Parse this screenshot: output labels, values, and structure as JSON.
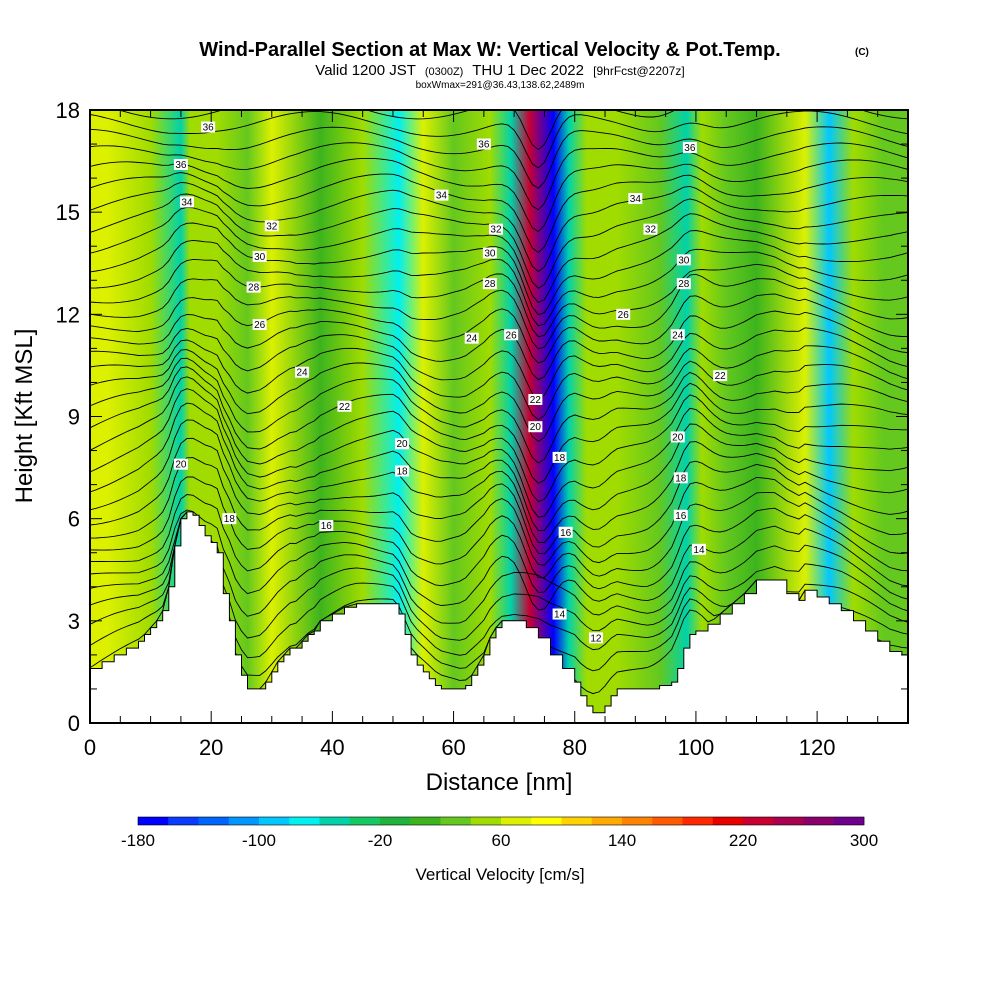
{
  "chart_data": {
    "type": "heatmap",
    "title": "Wind-Parallel Section at Max W: Vertical Velocity & Pot.Temp.",
    "title_mark": "(C)",
    "subtitle_a": "Valid 1200 JST",
    "subtitle_a_small": "(0300Z)",
    "subtitle_b": "THU 1 Dec 2022",
    "subtitle_c": "[9hrFcst@2207z]",
    "info_line": "boxWmax=291@36.43,138.62,2489m",
    "xlabel": "Distance [nm]",
    "ylabel": "Height [Kft MSL]",
    "xlim": [
      0,
      135
    ],
    "ylim": [
      0,
      18
    ],
    "x_ticks": [
      "0",
      "20",
      "40",
      "60",
      "80",
      "100",
      "120"
    ],
    "y_ticks": [
      "0",
      "3",
      "6",
      "9",
      "12",
      "15",
      "18"
    ],
    "colorbar": {
      "title": "Vertical Velocity [cm/s]",
      "min": -180,
      "max": 300,
      "step": 20,
      "tick_labels": [
        "-180",
        "-100",
        "-20",
        "60",
        "140",
        "220",
        "300"
      ],
      "colors": [
        "#0000ff",
        "#0a3cff",
        "#0064ff",
        "#0096ff",
        "#00c8ff",
        "#00f0f0",
        "#00d2aa",
        "#14c864",
        "#1eb43c",
        "#3cb41e",
        "#64c81e",
        "#a0dc00",
        "#dcf000",
        "#ffff00",
        "#ffd200",
        "#ffaa00",
        "#ff8200",
        "#ff5a00",
        "#ff2800",
        "#e60000",
        "#c80032",
        "#aa0050",
        "#8c006e",
        "#6e008c"
      ]
    },
    "velocity_bands": [
      {
        "x": 3,
        "w": 60
      },
      {
        "x": 10,
        "w": 40
      },
      {
        "x": 15,
        "w": -60
      },
      {
        "x": 16.5,
        "w": 50
      },
      {
        "x": 21,
        "w": 55
      },
      {
        "x": 26,
        "w": 20
      },
      {
        "x": 30,
        "w": 60
      },
      {
        "x": 38,
        "w": 15
      },
      {
        "x": 45,
        "w": 50
      },
      {
        "x": 51,
        "w": -80
      },
      {
        "x": 55,
        "w": 65
      },
      {
        "x": 60,
        "w": 30
      },
      {
        "x": 66,
        "w": 55
      },
      {
        "x": 69.5,
        "w": -60
      },
      {
        "x": 72.5,
        "w": 220
      },
      {
        "x": 76.5,
        "w": -180
      },
      {
        "x": 79,
        "w": -60
      },
      {
        "x": 82,
        "w": 40
      },
      {
        "x": 87,
        "w": 55
      },
      {
        "x": 94,
        "w": 30
      },
      {
        "x": 98.5,
        "w": -60
      },
      {
        "x": 101,
        "w": 55
      },
      {
        "x": 105,
        "w": 30
      },
      {
        "x": 110,
        "w": 10
      },
      {
        "x": 118,
        "w": 70
      },
      {
        "x": 122,
        "w": -100
      },
      {
        "x": 126,
        "w": 55
      },
      {
        "x": 131,
        "w": 20
      }
    ],
    "theta_contours": {
      "levels": [
        12,
        14,
        16,
        18,
        20,
        22,
        24,
        26,
        28,
        30,
        32,
        34,
        36
      ],
      "labels": [
        {
          "text": "36",
          "x": 19.5,
          "y": 17.5
        },
        {
          "text": "36",
          "x": 15,
          "y": 16.4
        },
        {
          "text": "34",
          "x": 16,
          "y": 15.3
        },
        {
          "text": "32",
          "x": 30,
          "y": 14.6
        },
        {
          "text": "30",
          "x": 28,
          "y": 13.7
        },
        {
          "text": "28",
          "x": 27,
          "y": 12.8
        },
        {
          "text": "26",
          "x": 28,
          "y": 11.7
        },
        {
          "text": "24",
          "x": 35,
          "y": 10.3
        },
        {
          "text": "22",
          "x": 42,
          "y": 9.3
        },
        {
          "text": "20",
          "x": 15,
          "y": 7.6
        },
        {
          "text": "18",
          "x": 23,
          "y": 6.0
        },
        {
          "text": "16",
          "x": 39,
          "y": 5.8
        },
        {
          "text": "36",
          "x": 65,
          "y": 17.0
        },
        {
          "text": "34",
          "x": 58,
          "y": 15.5
        },
        {
          "text": "32",
          "x": 67,
          "y": 14.5
        },
        {
          "text": "30",
          "x": 66,
          "y": 13.8
        },
        {
          "text": "28",
          "x": 66,
          "y": 12.9
        },
        {
          "text": "26",
          "x": 69.5,
          "y": 11.4
        },
        {
          "text": "24",
          "x": 63,
          "y": 11.3
        },
        {
          "text": "22",
          "x": 73.5,
          "y": 9.5
        },
        {
          "text": "20",
          "x": 73.5,
          "y": 8.7
        },
        {
          "text": "20",
          "x": 51.5,
          "y": 8.2
        },
        {
          "text": "18",
          "x": 51.5,
          "y": 7.4
        },
        {
          "text": "18",
          "x": 77.5,
          "y": 7.8
        },
        {
          "text": "16",
          "x": 78.5,
          "y": 5.6
        },
        {
          "text": "14",
          "x": 77.5,
          "y": 3.2
        },
        {
          "text": "12",
          "x": 83.5,
          "y": 2.5
        },
        {
          "text": "36",
          "x": 99,
          "y": 16.9
        },
        {
          "text": "34",
          "x": 90,
          "y": 15.4
        },
        {
          "text": "32",
          "x": 92.5,
          "y": 14.5
        },
        {
          "text": "30",
          "x": 98,
          "y": 13.6
        },
        {
          "text": "28",
          "x": 98,
          "y": 12.9
        },
        {
          "text": "26",
          "x": 88,
          "y": 12.0
        },
        {
          "text": "24",
          "x": 97,
          "y": 11.4
        },
        {
          "text": "22",
          "x": 104,
          "y": 10.2
        },
        {
          "text": "20",
          "x": 97,
          "y": 8.4
        },
        {
          "text": "18",
          "x": 97.5,
          "y": 7.2
        },
        {
          "text": "16",
          "x": 97.5,
          "y": 6.1
        },
        {
          "text": "14",
          "x": 100.5,
          "y": 5.1
        }
      ]
    },
    "terrain_profile": [
      [
        0,
        1.6
      ],
      [
        2,
        1.8
      ],
      [
        4,
        2.0
      ],
      [
        6,
        2.2
      ],
      [
        8,
        2.4
      ],
      [
        9,
        2.6
      ],
      [
        10,
        2.8
      ],
      [
        11,
        3.0
      ],
      [
        12,
        3.3
      ],
      [
        13,
        4.0
      ],
      [
        14,
        5.2
      ],
      [
        15,
        6.0
      ],
      [
        16,
        6.2
      ],
      [
        17,
        6.1
      ],
      [
        18,
        5.8
      ],
      [
        19,
        5.5
      ],
      [
        20,
        5.3
      ],
      [
        21,
        5.0
      ],
      [
        22,
        3.8
      ],
      [
        23,
        3.0
      ],
      [
        24,
        2.0
      ],
      [
        25,
        1.4
      ],
      [
        26,
        1.0
      ],
      [
        27,
        1.0
      ],
      [
        28,
        1.0
      ],
      [
        29,
        1.2
      ],
      [
        30,
        1.5
      ],
      [
        31,
        1.8
      ],
      [
        32,
        2.0
      ],
      [
        33,
        2.2
      ],
      [
        34,
        2.2
      ],
      [
        35,
        2.4
      ],
      [
        36,
        2.6
      ],
      [
        37,
        2.7
      ],
      [
        38,
        3.0
      ],
      [
        40,
        3.2
      ],
      [
        42,
        3.4
      ],
      [
        44,
        3.5
      ],
      [
        48,
        3.5
      ],
      [
        50,
        3.5
      ],
      [
        51,
        3.2
      ],
      [
        52,
        2.6
      ],
      [
        53,
        2.0
      ],
      [
        54,
        1.7
      ],
      [
        55,
        1.5
      ],
      [
        56,
        1.3
      ],
      [
        57,
        1.1
      ],
      [
        58,
        1.0
      ],
      [
        61,
        1.0
      ],
      [
        62,
        1.1
      ],
      [
        63,
        1.4
      ],
      [
        64,
        1.7
      ],
      [
        65,
        2.0
      ],
      [
        66,
        2.5
      ],
      [
        67,
        2.8
      ],
      [
        68,
        3.0
      ],
      [
        70,
        3.0
      ],
      [
        72,
        2.8
      ],
      [
        74,
        2.5
      ],
      [
        76,
        2.0
      ],
      [
        78,
        1.6
      ],
      [
        80,
        1.2
      ],
      [
        81,
        0.8
      ],
      [
        82,
        0.5
      ],
      [
        83,
        0.3
      ],
      [
        84,
        0.3
      ],
      [
        85,
        0.5
      ],
      [
        86,
        0.8
      ],
      [
        87,
        1.0
      ],
      [
        90,
        1.0
      ],
      [
        92,
        1.0
      ],
      [
        94,
        1.1
      ],
      [
        96,
        1.2
      ],
      [
        97,
        1.6
      ],
      [
        98,
        2.2
      ],
      [
        99,
        2.6
      ],
      [
        100,
        2.7
      ],
      [
        102,
        2.9
      ],
      [
        104,
        3.2
      ],
      [
        106,
        3.5
      ],
      [
        108,
        3.8
      ],
      [
        110,
        4.2
      ],
      [
        113,
        4.2
      ],
      [
        115,
        3.8
      ],
      [
        117,
        3.6
      ],
      [
        118,
        3.9
      ],
      [
        120,
        3.7
      ],
      [
        122,
        3.5
      ],
      [
        124,
        3.3
      ],
      [
        126,
        3.0
      ],
      [
        128,
        2.7
      ],
      [
        130,
        2.4
      ],
      [
        132,
        2.1
      ],
      [
        134,
        2.0
      ],
      [
        135,
        2.0
      ]
    ]
  }
}
